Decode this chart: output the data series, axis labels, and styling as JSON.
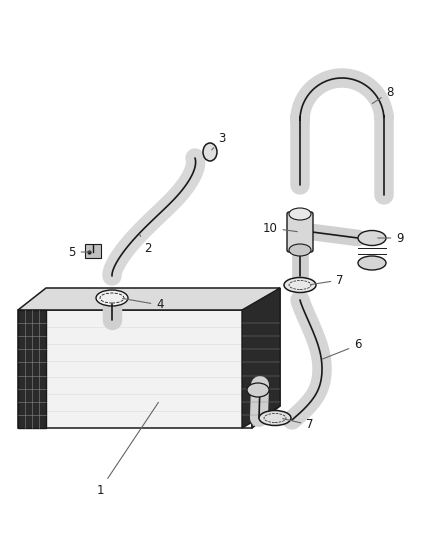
{
  "bg_color": "#ffffff",
  "line_color": "#1a1a1a",
  "label_color": "#1a1a1a",
  "label_font_size": 8.5,
  "fill_light": "#e8e8e8",
  "fill_mid": "#c8c8c8",
  "fill_dark": "#3a3a3a",
  "mesh_color": "#2a2a2a",
  "tube_fill": "#d0d0d0",
  "tube_lw": 12,
  "tube_edge_lw": 1.2
}
